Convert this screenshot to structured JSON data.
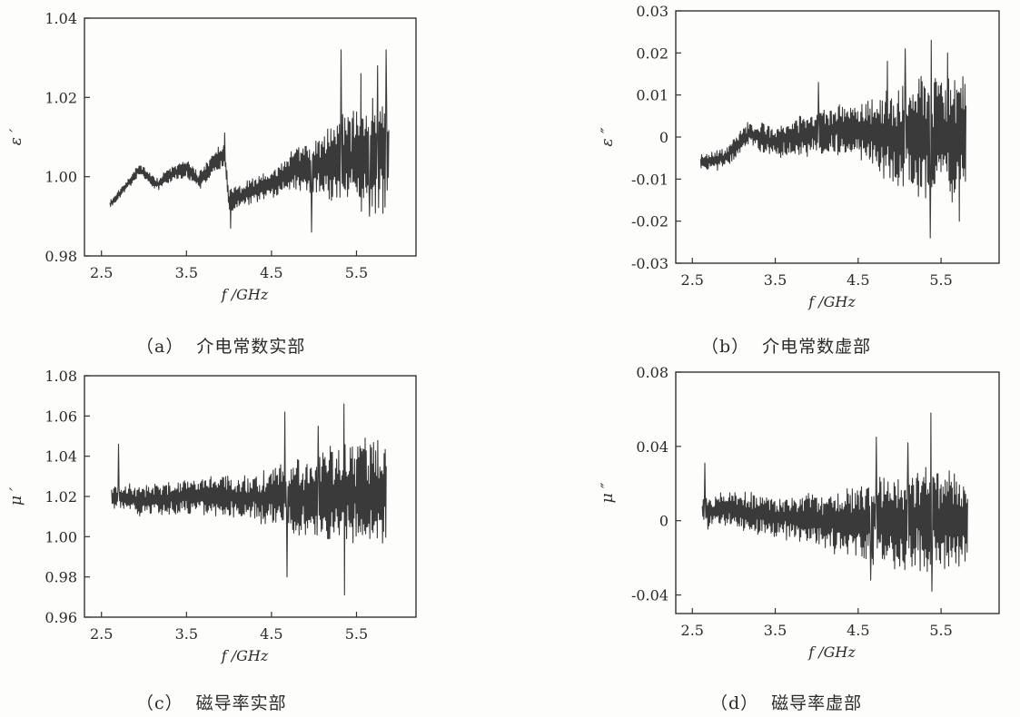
{
  "chart_data": [
    {
      "id": "a",
      "type": "line",
      "caption_label": "（a）",
      "caption_text": "介电常数实部",
      "ylabel": "ε ′",
      "xlabel": "f /GHz",
      "xlim": [
        2.3,
        6.2
      ],
      "ylim": [
        0.98,
        1.04
      ],
      "xticks": [
        2.5,
        3.5,
        4.5,
        5.5
      ],
      "xtick_labels": [
        "2.5",
        "3.5",
        "4.5",
        "5.5"
      ],
      "yticks": [
        0.98,
        1.0,
        1.02,
        1.04
      ],
      "ytick_labels": [
        "0.98",
        "1.00",
        "1.02",
        "1.04"
      ],
      "x_range": [
        2.6,
        5.88
      ],
      "trend": [
        [
          2.6,
          0.993
        ],
        [
          2.8,
          0.998
        ],
        [
          2.95,
          1.002
        ],
        [
          3.15,
          0.998
        ],
        [
          3.35,
          1.001
        ],
        [
          3.5,
          1.002
        ],
        [
          3.65,
          0.999
        ],
        [
          3.85,
          1.004
        ],
        [
          3.95,
          1.006
        ],
        [
          4.0,
          0.994
        ],
        [
          4.2,
          0.996
        ],
        [
          4.5,
          0.998
        ],
        [
          4.8,
          1.002
        ],
        [
          5.0,
          1.002
        ],
        [
          5.3,
          1.004
        ],
        [
          5.6,
          1.005
        ],
        [
          5.88,
          1.006
        ]
      ],
      "amplitude": [
        [
          2.6,
          0.001
        ],
        [
          3.5,
          0.002
        ],
        [
          4.0,
          0.003
        ],
        [
          4.5,
          0.003
        ],
        [
          4.9,
          0.006
        ],
        [
          5.3,
          0.011
        ],
        [
          5.88,
          0.014
        ]
      ],
      "samples": 520,
      "seed": 11,
      "spikes": [
        [
          3.95,
          1.011
        ],
        [
          4.02,
          0.987
        ],
        [
          4.97,
          0.986
        ],
        [
          5.32,
          1.032
        ],
        [
          5.55,
          1.026
        ],
        [
          5.75,
          1.028
        ],
        [
          5.85,
          1.032
        ],
        [
          5.65,
          0.99
        ]
      ]
    },
    {
      "id": "b",
      "type": "line",
      "caption_label": "（b）",
      "caption_text": "介电常数虚部",
      "ylabel": "ε ″",
      "xlabel": "f /GHz",
      "xlim": [
        2.3,
        6.2
      ],
      "ylim": [
        -0.03,
        0.03
      ],
      "xticks": [
        2.5,
        3.5,
        4.5,
        5.5
      ],
      "xtick_labels": [
        "2.5",
        "3.5",
        "4.5",
        "5.5"
      ],
      "yticks": [
        -0.03,
        -0.02,
        -0.01,
        0,
        0.01,
        0.02,
        0.03
      ],
      "ytick_labels": [
        "-0.03",
        "-0.02",
        "-0.01",
        "0",
        "0.01",
        "0.02",
        "0.03"
      ],
      "x_range": [
        2.6,
        5.8
      ],
      "trend": [
        [
          2.6,
          -0.006
        ],
        [
          2.9,
          -0.005
        ],
        [
          3.2,
          0.001
        ],
        [
          3.45,
          -0.001
        ],
        [
          3.8,
          0.0
        ],
        [
          4.2,
          0.002
        ],
        [
          4.6,
          0.001
        ],
        [
          5.0,
          0.0
        ],
        [
          5.4,
          0.0
        ],
        [
          5.8,
          0.0
        ]
      ],
      "amplitude": [
        [
          2.6,
          0.002
        ],
        [
          3.3,
          0.003
        ],
        [
          3.8,
          0.005
        ],
        [
          4.5,
          0.006
        ],
        [
          4.8,
          0.009
        ],
        [
          5.3,
          0.014
        ],
        [
          5.8,
          0.015
        ]
      ],
      "samples": 520,
      "seed": 23,
      "spikes": [
        [
          4.02,
          0.013
        ],
        [
          4.85,
          0.018
        ],
        [
          5.07,
          0.021
        ],
        [
          5.38,
          0.023
        ],
        [
          5.37,
          -0.024
        ],
        [
          5.58,
          0.02
        ],
        [
          5.72,
          -0.02
        ]
      ]
    },
    {
      "id": "c",
      "type": "line",
      "caption_label": "（c）",
      "caption_text": "磁导率实部",
      "ylabel": "μ ′",
      "xlabel": "f /GHz",
      "xlim": [
        2.3,
        6.2
      ],
      "ylim": [
        0.96,
        1.08
      ],
      "xticks": [
        2.5,
        3.5,
        4.5,
        5.5
      ],
      "xtick_labels": [
        "2.5",
        "3.5",
        "4.5",
        "5.5"
      ],
      "yticks": [
        0.96,
        0.98,
        1.0,
        1.02,
        1.04,
        1.06,
        1.08
      ],
      "ytick_labels": [
        "0.96",
        "0.98",
        "1.00",
        "1.02",
        "1.04",
        "1.06",
        "1.08"
      ],
      "x_range": [
        2.62,
        5.85
      ],
      "trend": [
        [
          2.62,
          1.02
        ],
        [
          3.0,
          1.018
        ],
        [
          3.5,
          1.02
        ],
        [
          4.0,
          1.02
        ],
        [
          4.5,
          1.02
        ],
        [
          5.0,
          1.02
        ],
        [
          5.85,
          1.022
        ]
      ],
      "amplitude": [
        [
          2.62,
          0.007
        ],
        [
          3.5,
          0.008
        ],
        [
          4.2,
          0.011
        ],
        [
          4.8,
          0.017
        ],
        [
          5.3,
          0.024
        ],
        [
          5.85,
          0.026
        ]
      ],
      "samples": 520,
      "seed": 37,
      "spikes": [
        [
          2.7,
          1.046
        ],
        [
          4.66,
          1.062
        ],
        [
          4.68,
          0.98
        ],
        [
          5.35,
          1.066
        ],
        [
          5.36,
          0.971
        ],
        [
          5.05,
          1.055
        ]
      ]
    },
    {
      "id": "d",
      "type": "line",
      "caption_label": "（d）",
      "caption_text": "磁导率虚部",
      "ylabel": "μ ″",
      "xlabel": "f /GHz",
      "xlim": [
        2.3,
        6.2
      ],
      "ylim": [
        -0.05,
        0.08
      ],
      "xticks": [
        2.5,
        3.5,
        4.5,
        5.5
      ],
      "xtick_labels": [
        "2.5",
        "3.5",
        "4.5",
        "5.5"
      ],
      "yticks": [
        -0.04,
        0,
        0.04,
        0.08
      ],
      "ytick_labels": [
        "-0.04",
        "0",
        "0.04",
        "0.08"
      ],
      "x_range": [
        2.62,
        5.82
      ],
      "trend": [
        [
          2.62,
          0.005
        ],
        [
          3.0,
          0.006
        ],
        [
          3.5,
          0.002
        ],
        [
          4.0,
          0.0
        ],
        [
          4.5,
          0.0
        ],
        [
          5.0,
          0.0
        ],
        [
          5.82,
          0.0
        ]
      ],
      "amplitude": [
        [
          2.62,
          0.009
        ],
        [
          3.5,
          0.01
        ],
        [
          4.0,
          0.014
        ],
        [
          4.6,
          0.02
        ],
        [
          5.2,
          0.027
        ],
        [
          5.82,
          0.028
        ]
      ],
      "samples": 520,
      "seed": 53,
      "spikes": [
        [
          2.65,
          0.031
        ],
        [
          4.65,
          -0.032
        ],
        [
          4.72,
          0.045
        ],
        [
          5.38,
          0.058
        ],
        [
          5.39,
          -0.038
        ],
        [
          5.1,
          0.042
        ]
      ]
    }
  ]
}
